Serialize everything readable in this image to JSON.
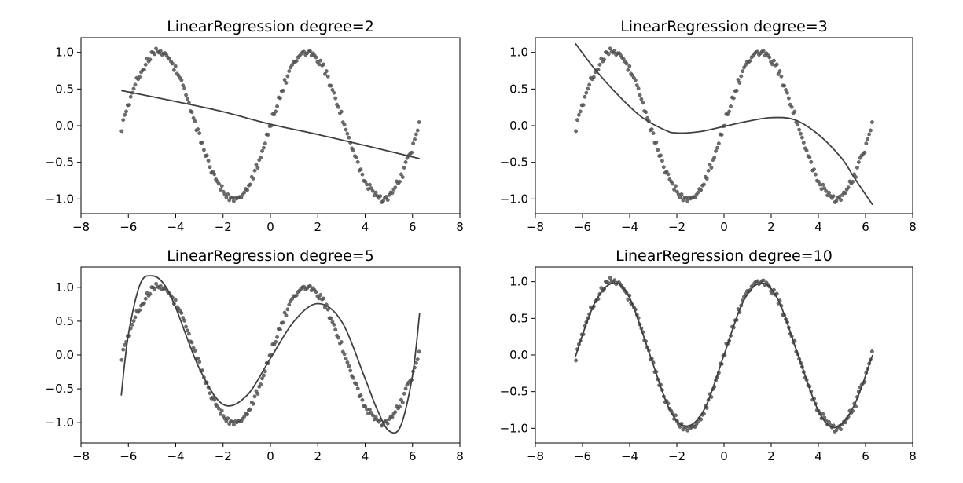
{
  "colors": {
    "points": "#555555",
    "line": "#404040",
    "frame": "#000000"
  },
  "chart_data": [
    {
      "type": "line",
      "title": "LinearRegression degree=2",
      "xlim": [
        -8,
        8
      ],
      "ylim": [
        -1.2,
        1.2
      ],
      "xticks": [
        -8,
        -6,
        -4,
        -2,
        0,
        2,
        4,
        6,
        8
      ],
      "yticks": [
        -1.0,
        -0.5,
        0.0,
        0.5,
        1.0
      ],
      "xtick_labels": [
        "−8",
        "−6",
        "−4",
        "−2",
        "0",
        "2",
        "4",
        "6",
        "8"
      ],
      "ytick_labels": [
        "−1.0",
        "−0.5",
        "0.0",
        "0.5",
        "1.0"
      ],
      "scatter": {
        "x_range": [
          -6.28,
          6.28
        ],
        "count": 200,
        "function": "sin(x)",
        "noise": 0.05
      },
      "fit_line": {
        "x": [
          -6.3,
          -4,
          -2,
          0,
          2,
          4,
          6.3
        ],
        "y": [
          0.48,
          0.33,
          0.19,
          0.02,
          -0.12,
          -0.27,
          -0.45
        ]
      }
    },
    {
      "type": "line",
      "title": "LinearRegression degree=3",
      "xlim": [
        -8,
        8
      ],
      "ylim": [
        -1.2,
        1.2
      ],
      "xticks": [
        -8,
        -6,
        -4,
        -2,
        0,
        2,
        4,
        6,
        8
      ],
      "yticks": [
        -1.0,
        -0.5,
        0.0,
        0.5,
        1.0
      ],
      "xtick_labels": [
        "−8",
        "−6",
        "−4",
        "−2",
        "0",
        "2",
        "4",
        "6",
        "8"
      ],
      "ytick_labels": [
        "−1.0",
        "−0.5",
        "0.0",
        "0.5",
        "1.0"
      ],
      "scatter": {
        "x_range": [
          -6.28,
          6.28
        ],
        "count": 200,
        "function": "sin(x)",
        "noise": 0.05
      },
      "fit_line": {
        "x": [
          -6.3,
          -5.5,
          -4.5,
          -3.5,
          -2.5,
          -2,
          -1,
          0,
          1,
          2,
          3,
          4,
          5,
          5.5,
          6.3
        ],
        "y": [
          1.12,
          0.78,
          0.42,
          0.12,
          -0.06,
          -0.1,
          -0.08,
          -0.01,
          0.06,
          0.11,
          0.08,
          -0.12,
          -0.45,
          -0.7,
          -1.08
        ]
      }
    },
    {
      "type": "line",
      "title": "LinearRegression degree=5",
      "xlim": [
        -8,
        8
      ],
      "ylim": [
        -1.3,
        1.3
      ],
      "xticks": [
        -8,
        -6,
        -4,
        -2,
        0,
        2,
        4,
        6,
        8
      ],
      "yticks": [
        -1.0,
        -0.5,
        0.0,
        0.5,
        1.0
      ],
      "xtick_labels": [
        "−8",
        "−6",
        "−4",
        "−2",
        "0",
        "2",
        "4",
        "6",
        "8"
      ],
      "ytick_labels": [
        "−1.0",
        "−0.5",
        "0.0",
        "0.5",
        "1.0"
      ],
      "scatter": {
        "x_range": [
          -6.28,
          6.28
        ],
        "count": 200,
        "function": "sin(x)",
        "noise": 0.05
      },
      "fit_line": {
        "x": [
          -6.3,
          -6,
          -5.5,
          -5,
          -4.5,
          -4,
          -3,
          -2,
          -1,
          0,
          1,
          2,
          3,
          4,
          4.5,
          5,
          5.5,
          6,
          6.3
        ],
        "y": [
          -0.6,
          0.3,
          1.05,
          1.17,
          1.05,
          0.7,
          -0.2,
          -0.73,
          -0.6,
          -0.05,
          0.5,
          0.76,
          0.5,
          -0.35,
          -0.8,
          -1.12,
          -1.05,
          -0.3,
          0.62
        ]
      }
    },
    {
      "type": "line",
      "title": "LinearRegression degree=10",
      "xlim": [
        -8,
        8
      ],
      "ylim": [
        -1.2,
        1.2
      ],
      "xticks": [
        -8,
        -6,
        -4,
        -2,
        0,
        2,
        4,
        6,
        8
      ],
      "yticks": [
        -1.0,
        -0.5,
        0.0,
        0.5,
        1.0
      ],
      "xtick_labels": [
        "−8",
        "−6",
        "−4",
        "−2",
        "0",
        "2",
        "4",
        "6",
        "8"
      ],
      "ytick_labels": [
        "−1.0",
        "−0.5",
        "0.0",
        "0.5",
        "1.0"
      ],
      "scatter": {
        "x_range": [
          -6.28,
          6.28
        ],
        "count": 200,
        "function": "sin(x)",
        "noise": 0.05
      },
      "fit_line": {
        "x": [
          -6.3,
          -5.5,
          -4.71,
          -4,
          -3.14,
          -2.3,
          -1.57,
          -0.8,
          0,
          0.8,
          1.57,
          2.3,
          3.14,
          4,
          4.71,
          5.5,
          6.3
        ],
        "y": [
          -0.02,
          0.7,
          0.98,
          0.78,
          0.0,
          -0.75,
          -0.97,
          -0.72,
          0.0,
          0.72,
          0.98,
          0.75,
          0.0,
          -0.76,
          -0.99,
          -0.7,
          0.0
        ]
      }
    }
  ]
}
